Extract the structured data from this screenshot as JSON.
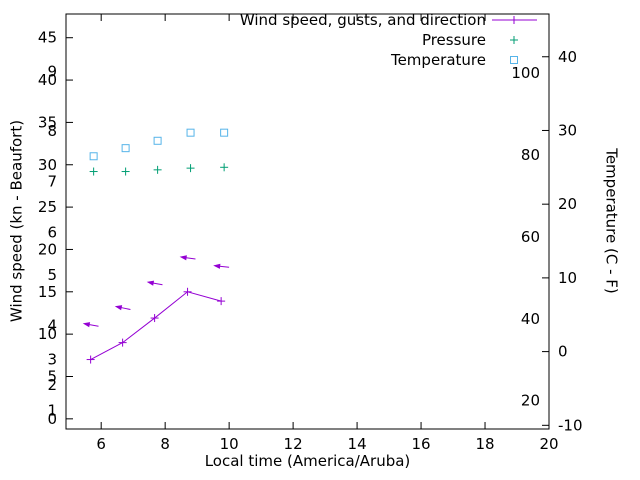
{
  "chart_data": {
    "type": "line",
    "title": "",
    "grid": false,
    "background": "#ffffff",
    "legend": {
      "position": "top-right-inside",
      "entries": [
        {
          "label": "Wind speed, gusts, and direction",
          "marker": "line-plus",
          "color": "#9400d3"
        },
        {
          "label": "Pressure",
          "marker": "plus",
          "color": "#009e73"
        },
        {
          "label": "Temperature",
          "marker": "open-square",
          "color": "#56b4e9"
        }
      ]
    },
    "axes": {
      "x": {
        "label": "Local time (America/Aruba)",
        "min": 4.9,
        "max": 20,
        "ticks": [
          6,
          8,
          10,
          12,
          14,
          16,
          18,
          20
        ]
      },
      "y_left": {
        "label": "Wind speed (kn - Beaufort)",
        "min": -1.2,
        "max": 47.8,
        "ticks": [
          0,
          5,
          10,
          15,
          20,
          25,
          30,
          35,
          40,
          45
        ],
        "beaufort_scale_labels": [
          {
            "beaufort": "1",
            "kn": 1
          },
          {
            "beaufort": "2",
            "kn": 4
          },
          {
            "beaufort": "3",
            "kn": 7
          },
          {
            "beaufort": "4",
            "kn": 11
          },
          {
            "beaufort": "5",
            "kn": 17
          },
          {
            "beaufort": "6",
            "kn": 22
          },
          {
            "beaufort": "7",
            "kn": 28
          },
          {
            "beaufort": "8",
            "kn": 34
          },
          {
            "beaufort": "9",
            "kn": 41
          }
        ]
      },
      "y_right": {
        "label": "Temperature (C - F)",
        "min": -10.5,
        "max": 45.8,
        "ticks": [
          -10,
          0,
          10,
          20,
          30,
          40
        ],
        "fahrenheit_scale_labels": [
          20,
          40,
          60,
          80,
          100
        ]
      }
    },
    "series": {
      "x_hours": [
        5.67,
        6.67,
        7.67,
        8.7,
        9.75
      ],
      "wind_speed_kn": [
        7.0,
        9.0,
        11.9,
        15.0,
        13.9
      ],
      "gusts_kn": [
        11.1,
        13.1,
        16.0,
        19.0,
        18.0
      ],
      "gust_arrow_screen_angles_deg": [
        190,
        192,
        190,
        188,
        186
      ],
      "pressure_plotted_left_axis": [
        29.2,
        29.2,
        29.4,
        29.6,
        29.7
      ],
      "temperature_c": [
        26.5,
        27.6,
        28.6,
        29.7,
        29.7
      ]
    },
    "colors": {
      "wind": "#9400d3",
      "pressure": "#009e73",
      "temperature": "#56b4e9",
      "axis": "#000000"
    }
  }
}
